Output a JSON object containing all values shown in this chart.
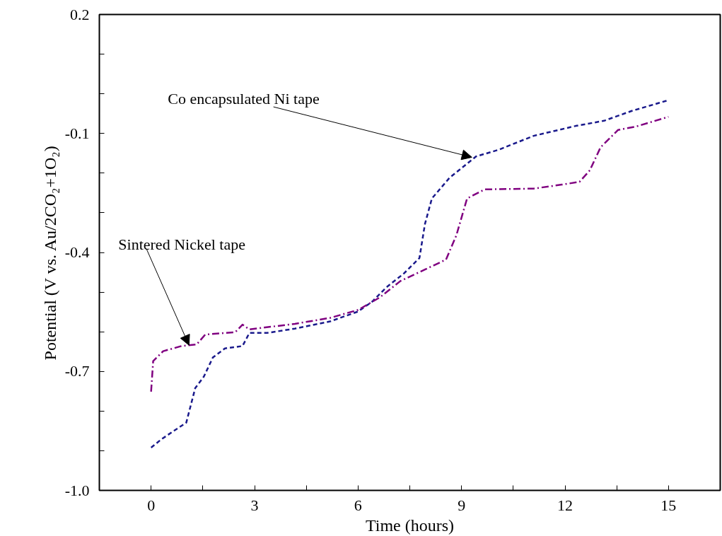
{
  "chart_data": {
    "type": "line",
    "xlabel": "Time (hours)",
    "ylabel": "Potential (V vs. Au/2CO₂+1O₂)",
    "xlim": [
      -1.5,
      16.5
    ],
    "ylim": [
      -1.0,
      0.2
    ],
    "xticks": [
      0,
      {
        "value": 1.5,
        "label": null
      },
      3,
      {
        "value": 4.5,
        "label": null
      },
      6,
      {
        "value": 7.5,
        "label": null
      },
      9,
      {
        "value": 10.5,
        "label": null
      },
      12,
      {
        "value": 13.5,
        "label": null
      },
      15
    ],
    "yticks": [
      {
        "value": -1.0,
        "label": "-1.0"
      },
      {
        "value": -0.9,
        "label": null
      },
      {
        "value": -0.8,
        "label": null
      },
      -0.7,
      {
        "value": -0.6,
        "label": null
      },
      {
        "value": -0.5,
        "label": null
      },
      -0.4,
      {
        "value": -0.3,
        "label": null
      },
      {
        "value": -0.2,
        "label": null
      },
      -0.1,
      {
        "value": 0.0,
        "label": null
      },
      {
        "value": 0.1,
        "label": null
      },
      0.2
    ],
    "grid": false,
    "marker": "none",
    "annotations": [
      {
        "text": "Co encapsulated Ni tape",
        "x": 9.3,
        "y": -0.16
      },
      {
        "text": "Sintered Nickel tape",
        "x": 1.1,
        "y": -0.634
      }
    ],
    "series": [
      {
        "color": "#1a1a8c",
        "line_style": "dashed",
        "x": [
          0,
          0.3,
          1.02,
          1.28,
          1.53,
          1.79,
          2.14,
          2.65,
          2.85,
          3.36,
          4.17,
          5.19,
          6.0,
          6.41,
          6.82,
          7.33,
          7.78,
          7.94,
          8.14,
          8.65,
          9.42,
          10.08,
          11.09,
          12.31,
          13.13,
          13.94,
          15.0
        ],
        "values": [
          -0.892,
          -0.871,
          -0.829,
          -0.742,
          -0.713,
          -0.665,
          -0.642,
          -0.636,
          -0.603,
          -0.603,
          -0.592,
          -0.574,
          -0.549,
          -0.524,
          -0.488,
          -0.453,
          -0.414,
          -0.328,
          -0.264,
          -0.212,
          -0.158,
          -0.141,
          -0.106,
          -0.081,
          -0.068,
          -0.043,
          -0.016
        ]
      },
      {
        "color": "#800080",
        "line_style": "dashdot",
        "x": [
          0,
          0.06,
          0.35,
          0.88,
          1.32,
          1.57,
          2.44,
          2.65,
          2.85,
          4.17,
          5.19,
          6.0,
          6.62,
          7.23,
          7.94,
          8.55,
          8.85,
          9.16,
          9.67,
          11.09,
          11.91,
          12.42,
          12.72,
          13.03,
          13.54,
          14.04,
          15.0
        ],
        "values": [
          -0.751,
          -0.674,
          -0.649,
          -0.636,
          -0.632,
          -0.607,
          -0.601,
          -0.582,
          -0.594,
          -0.58,
          -0.565,
          -0.545,
          -0.514,
          -0.472,
          -0.443,
          -0.418,
          -0.357,
          -0.264,
          -0.241,
          -0.239,
          -0.229,
          -0.222,
          -0.193,
          -0.135,
          -0.091,
          -0.083,
          -0.058
        ]
      }
    ]
  }
}
